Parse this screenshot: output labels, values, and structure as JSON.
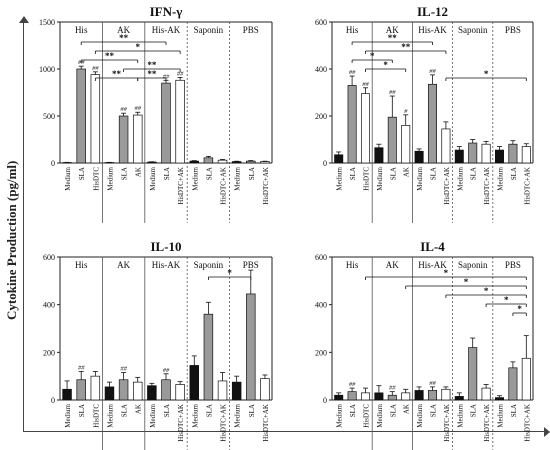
{
  "figure": {
    "y_label": "Cytokine Production (pg/ml)"
  },
  "chart_data": [
    {
      "type": "bar",
      "title": "IFN-γ",
      "ylim": [
        0,
        1500
      ],
      "yticks": [
        0,
        500,
        1000,
        1500
      ],
      "groups": [
        "His",
        "AK",
        "His-AK",
        "Saponin",
        "PBS"
      ],
      "categories": [
        "Medium",
        "SLA",
        "HisDTC",
        "Medium",
        "SLA",
        "AK",
        "Medium",
        "SLA",
        "HisDTC+AK",
        "Medium",
        "SLA",
        "HisDTC+AK",
        "Medium",
        "SLA",
        "HisDTC+AK"
      ],
      "bar_colors": [
        "black",
        "gray",
        "white",
        "black",
        "gray",
        "white",
        "black",
        "gray",
        "white",
        "black",
        "gray",
        "white",
        "black",
        "gray",
        "white"
      ],
      "values": [
        5,
        1000,
        940,
        5,
        500,
        510,
        10,
        850,
        880,
        20,
        55,
        30,
        15,
        20,
        15
      ],
      "errors": [
        2,
        30,
        30,
        2,
        30,
        30,
        3,
        30,
        30,
        5,
        15,
        8,
        4,
        6,
        4
      ],
      "annotations": [
        "",
        "##",
        "##",
        "",
        "##",
        "##",
        "",
        "##",
        "##",
        "",
        "",
        "",
        "",
        "",
        ""
      ],
      "significance": [
        {
          "from": 1,
          "to": 7,
          "label": "**",
          "level": 0
        },
        {
          "from": 2,
          "to": 8,
          "label": "*",
          "level": 1
        },
        {
          "from": 1,
          "to": 5,
          "label": "**",
          "level": 2
        },
        {
          "from": 4,
          "to": 8,
          "label": "**",
          "level": 3
        },
        {
          "from": 2,
          "to": 5,
          "label": "**",
          "level": 4
        },
        {
          "from": 5,
          "to": 7,
          "label": "**",
          "level": 4
        }
      ]
    },
    {
      "type": "bar",
      "title": "IL-12",
      "ylim": [
        0,
        600
      ],
      "yticks": [
        0,
        200,
        400,
        600
      ],
      "groups": [
        "His",
        "AK",
        "His-AK",
        "Saponin",
        "PBS"
      ],
      "categories": [
        "Medium",
        "SLA",
        "HisDTC",
        "Medium",
        "SLA",
        "AK",
        "Medium",
        "SLA",
        "HisDTC+AK",
        "Medium",
        "SLA",
        "HisDTC+AK",
        "Medium",
        "SLA",
        "HisDTC+AK"
      ],
      "bar_colors": [
        "black",
        "gray",
        "white",
        "black",
        "gray",
        "white",
        "black",
        "gray",
        "white",
        "black",
        "gray",
        "white",
        "black",
        "gray",
        "white"
      ],
      "values": [
        35,
        330,
        295,
        65,
        195,
        160,
        50,
        335,
        145,
        55,
        85,
        80,
        55,
        80,
        70
      ],
      "errors": [
        12,
        40,
        25,
        15,
        90,
        45,
        10,
        40,
        30,
        15,
        15,
        12,
        15,
        15,
        12
      ],
      "annotations": [
        "",
        "##",
        "##",
        "",
        "##",
        "#",
        "",
        "##",
        "",
        "",
        "",
        "",
        "",
        "",
        ""
      ],
      "significance": [
        {
          "from": 1,
          "to": 7,
          "label": "**",
          "level": 0
        },
        {
          "from": 2,
          "to": 8,
          "label": "**",
          "level": 1
        },
        {
          "from": 1,
          "to": 4,
          "label": "*",
          "level": 2
        },
        {
          "from": 2,
          "to": 5,
          "label": "*",
          "level": 3
        },
        {
          "from": 8,
          "to": 14,
          "label": "*",
          "level": 4
        }
      ]
    },
    {
      "type": "bar",
      "title": "IL-10",
      "ylim": [
        0,
        600
      ],
      "yticks": [
        0,
        200,
        400,
        600
      ],
      "groups": [
        "His",
        "AK",
        "His-AK",
        "Saponin",
        "PBS"
      ],
      "categories": [
        "Medium",
        "SLA",
        "HisDTC",
        "Medium",
        "SLA",
        "AK",
        "Medium",
        "SLA",
        "HisDTC+AK",
        "Medium",
        "SLA",
        "HisDTC+AK",
        "Medium",
        "SLA",
        "HisDTC+AK"
      ],
      "bar_colors": [
        "black",
        "gray",
        "white",
        "black",
        "gray",
        "white",
        "black",
        "gray",
        "white",
        "black",
        "gray",
        "white",
        "black",
        "gray",
        "white"
      ],
      "values": [
        45,
        85,
        100,
        55,
        85,
        75,
        60,
        85,
        65,
        145,
        360,
        80,
        75,
        445,
        90
      ],
      "errors": [
        35,
        35,
        20,
        20,
        30,
        20,
        10,
        25,
        12,
        40,
        50,
        35,
        25,
        100,
        15
      ],
      "annotations": [
        "",
        "##",
        "",
        "",
        "##",
        "",
        "",
        "##",
        "",
        "",
        "",
        "",
        "",
        "",
        ""
      ],
      "significance": [
        {
          "from": 10,
          "to": 13,
          "label": "*",
          "level": 0
        }
      ]
    },
    {
      "type": "bar",
      "title": "IL-4",
      "ylim": [
        0,
        600
      ],
      "yticks": [
        0,
        200,
        400,
        600
      ],
      "groups": [
        "His",
        "AK",
        "His-AK",
        "Saponin",
        "PBS"
      ],
      "categories": [
        "Medium",
        "SLA",
        "HisDTC",
        "Medium",
        "SLA",
        "AK",
        "Medium",
        "SLA",
        "HisDTC+AK",
        "Medium",
        "SLA",
        "HisDTC+AK",
        "Medium",
        "SLA",
        "HisDTC+AK"
      ],
      "bar_colors": [
        "black",
        "gray",
        "white",
        "black",
        "gray",
        "white",
        "black",
        "gray",
        "white",
        "black",
        "gray",
        "white",
        "black",
        "gray",
        "white"
      ],
      "values": [
        20,
        35,
        30,
        30,
        20,
        30,
        40,
        40,
        45,
        15,
        220,
        50,
        10,
        135,
        175
      ],
      "errors": [
        10,
        15,
        20,
        30,
        15,
        15,
        15,
        15,
        10,
        15,
        40,
        15,
        8,
        25,
        95
      ],
      "annotations": [
        "",
        "##",
        "",
        "",
        "##",
        "",
        "",
        "##",
        "",
        "",
        "",
        "",
        "",
        "",
        ""
      ],
      "significance": [
        {
          "from": 2,
          "to": 14,
          "label": "*",
          "level": 0
        },
        {
          "from": 5,
          "to": 14,
          "label": "*",
          "level": 1
        },
        {
          "from": 8,
          "to": 14,
          "label": "*",
          "level": 2
        },
        {
          "from": 11,
          "to": 14,
          "label": "*",
          "level": 3
        },
        {
          "from": 13,
          "to": 14,
          "label": "*",
          "level": 4
        }
      ]
    }
  ]
}
